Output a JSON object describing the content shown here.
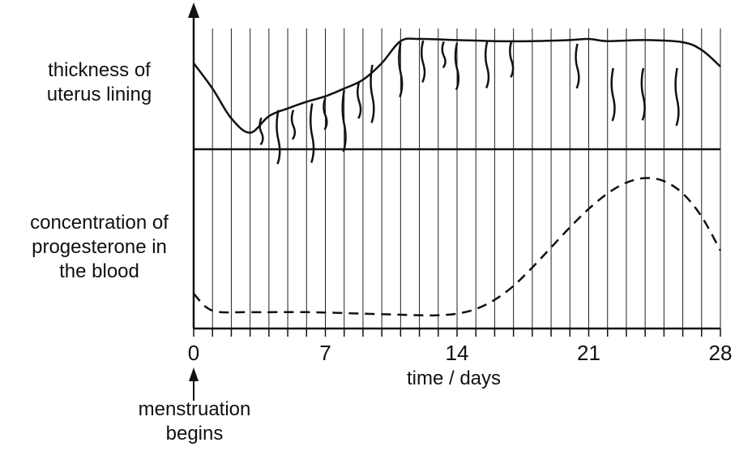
{
  "labels": {
    "thickness_line1": "thickness of",
    "thickness_line2": "uterus lining",
    "progesterone_line1": "concentration of",
    "progesterone_line2": "progesterone in",
    "progesterone_line3": "the blood",
    "xaxis": "time / days",
    "event_line1": "menstruation",
    "event_line2": "begins"
  },
  "chart_data": {
    "type": "line",
    "xlabel": "time / days",
    "xlim": [
      0,
      28
    ],
    "x_ticks": [
      0,
      7,
      14,
      21,
      28
    ],
    "x_tick_labels": [
      "0",
      "7",
      "14",
      "21",
      "28"
    ],
    "grid_lines_every_day": true,
    "series": [
      {
        "name": "thickness of uterus lining",
        "style": "solid",
        "x": [
          0,
          1,
          2,
          3,
          4,
          5,
          6,
          7,
          8,
          9,
          10,
          11,
          12,
          14,
          16,
          18,
          20,
          21,
          22,
          24,
          26,
          27,
          28
        ],
        "y": [
          0.78,
          0.55,
          0.28,
          0.15,
          0.3,
          0.37,
          0.43,
          0.48,
          0.55,
          0.63,
          0.78,
          0.98,
          1.0,
          0.99,
          0.98,
          0.98,
          0.99,
          1.0,
          0.98,
          0.99,
          0.97,
          0.9,
          0.75
        ]
      },
      {
        "name": "concentration of progesterone in the blood",
        "style": "dashed",
        "x": [
          0,
          1,
          3,
          6,
          9,
          12,
          13,
          14,
          15,
          16,
          17,
          18,
          19,
          20,
          21,
          22,
          23,
          24,
          25,
          26,
          27,
          28
        ],
        "y": [
          0.2,
          0.09,
          0.08,
          0.08,
          0.07,
          0.06,
          0.06,
          0.07,
          0.1,
          0.16,
          0.25,
          0.37,
          0.5,
          0.63,
          0.75,
          0.85,
          0.92,
          0.95,
          0.93,
          0.85,
          0.7,
          0.48
        ]
      }
    ],
    "annotations": [
      "menstruation begins"
    ]
  }
}
